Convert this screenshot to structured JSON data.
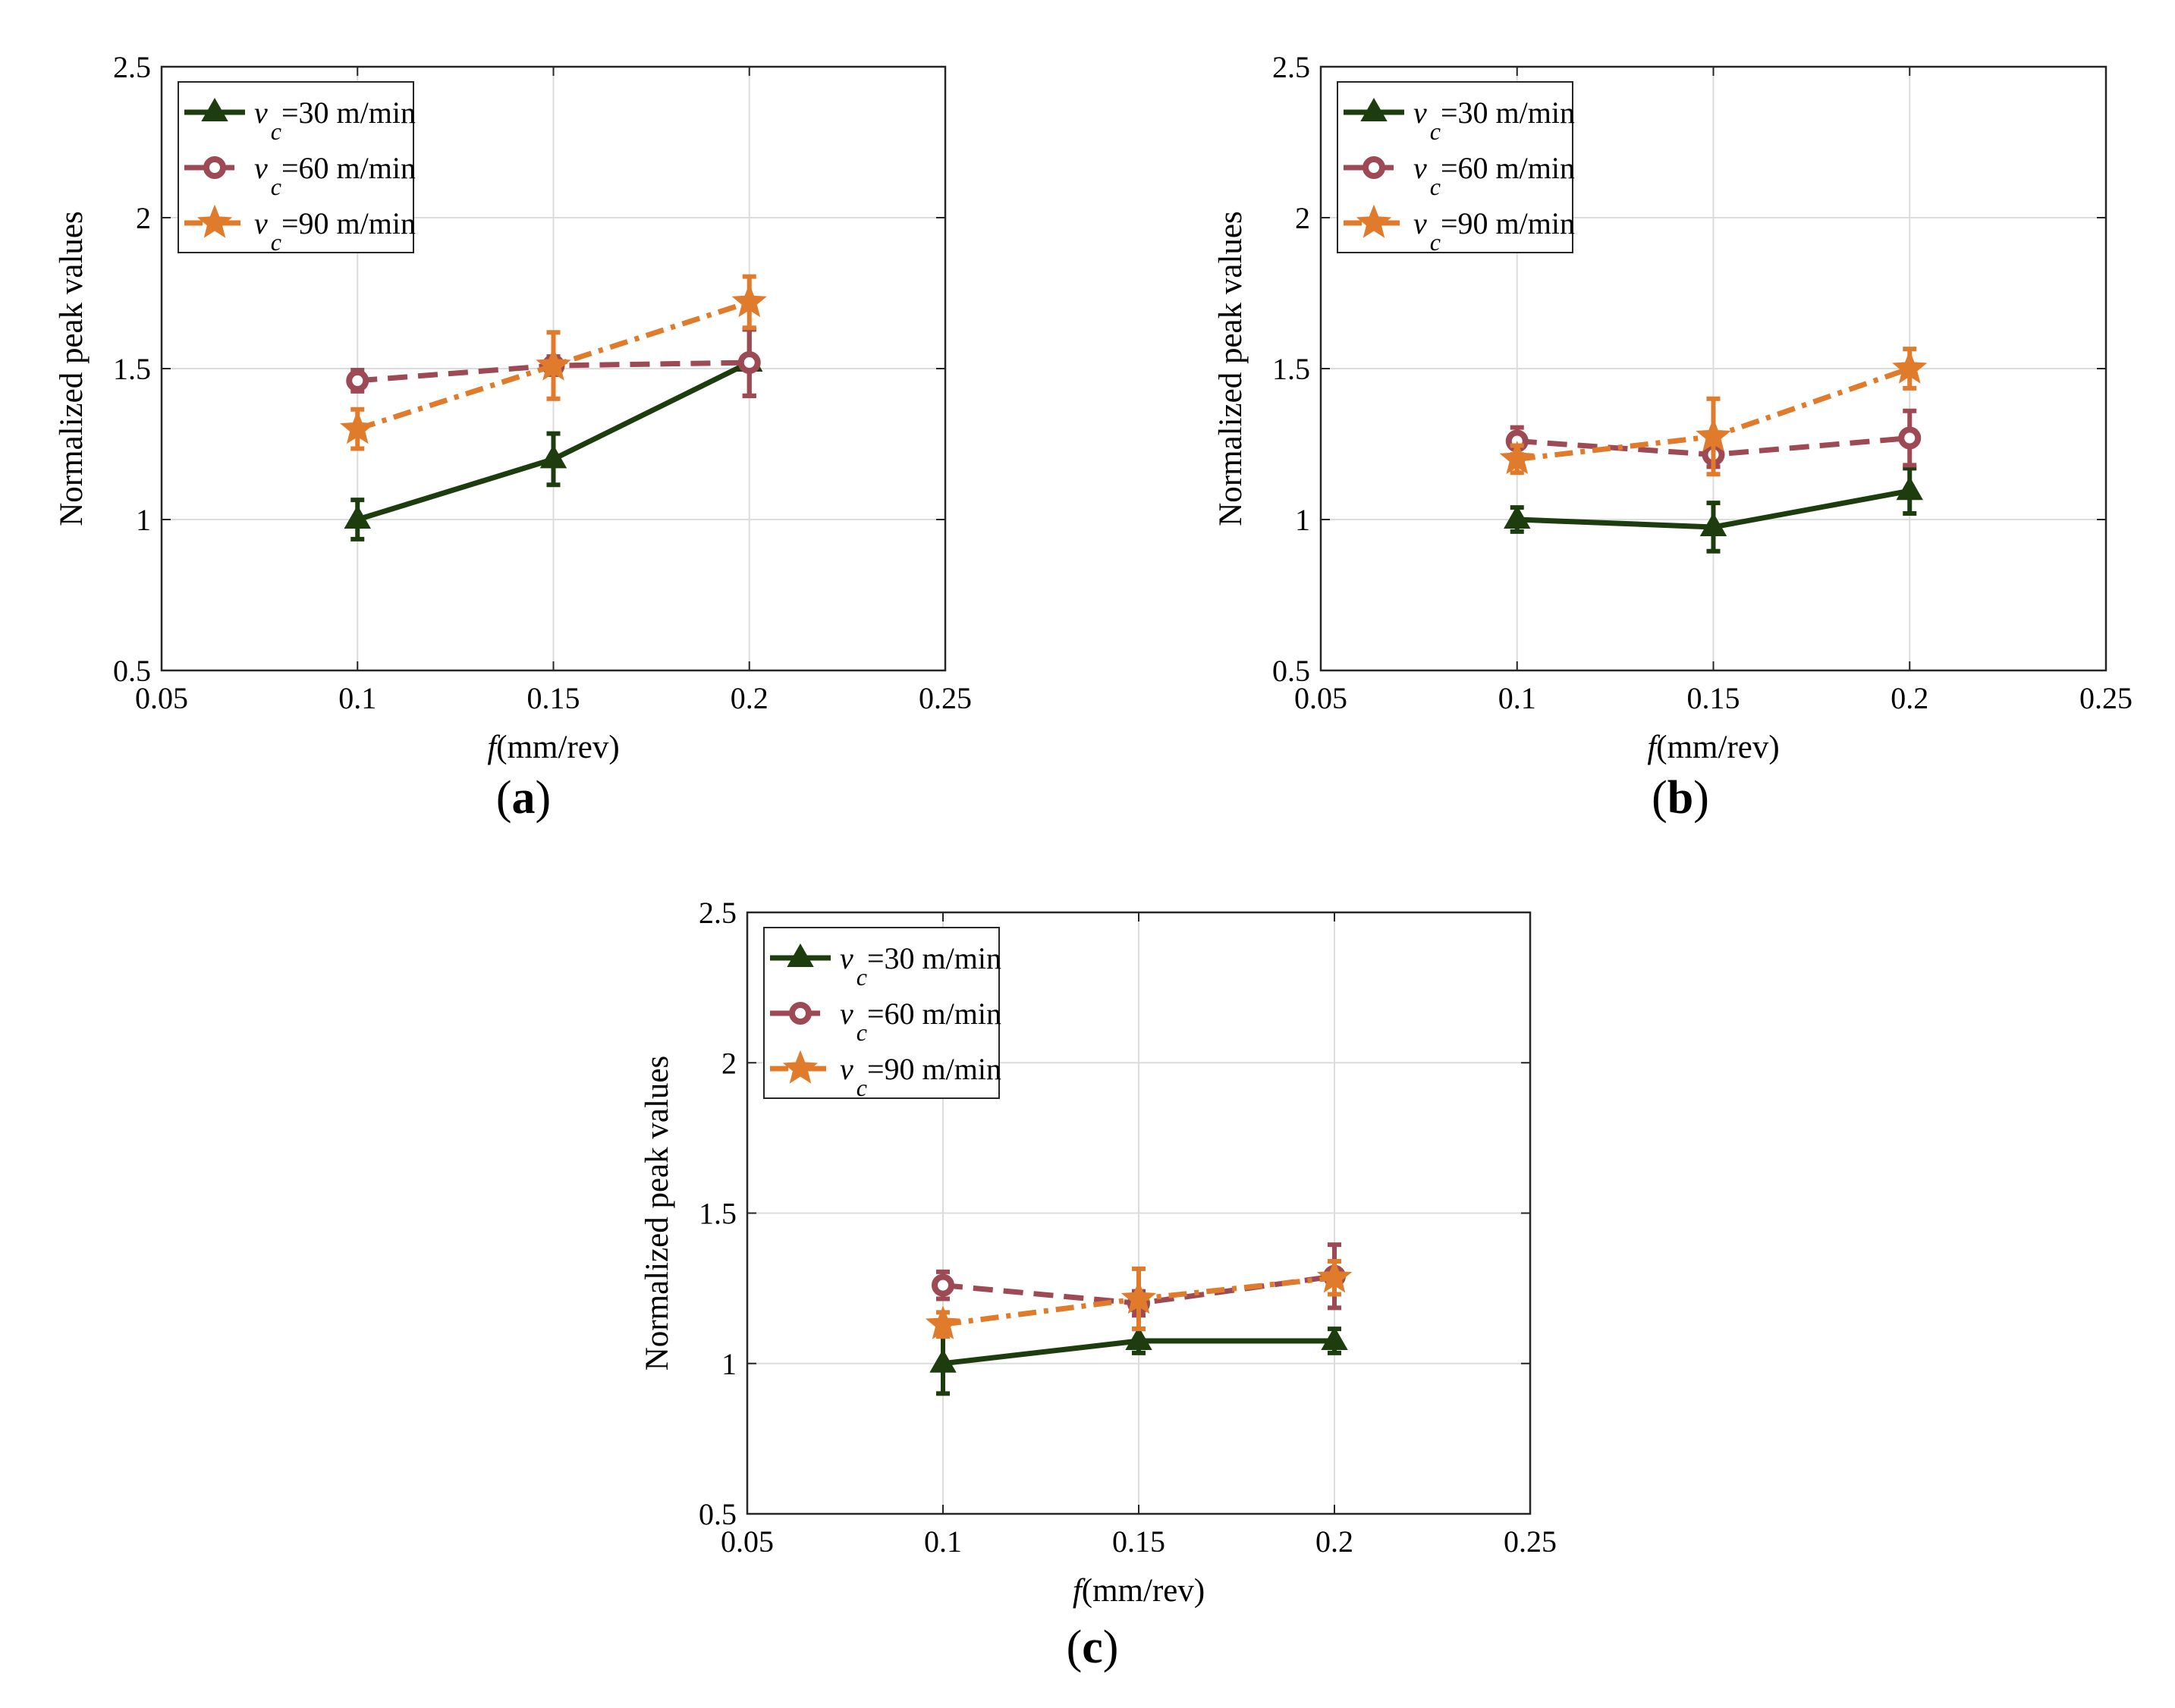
{
  "figure": {
    "panel_labels": [
      "a",
      "b",
      "c"
    ]
  },
  "chart_data": [
    {
      "type": "line",
      "panel": "a",
      "xlabel_italic": "f",
      "xlabel_rest": "(mm/rev)",
      "ylabel": "Normalized peak values",
      "xlim": [
        0.05,
        0.25
      ],
      "ylim": [
        0.5,
        2.5
      ],
      "xticks": [
        "0.05",
        "0.1",
        "0.15",
        "0.2",
        "0.25"
      ],
      "yticks": [
        "0.5",
        "1",
        "1.5",
        "2",
        "2.5"
      ],
      "grid": true,
      "legend_position": "top-left",
      "x": [
        0.1,
        0.15,
        0.2
      ],
      "series": [
        {
          "name_var": "v",
          "name_sub": "c",
          "name_rest": "=30 m/min",
          "marker": "triangle",
          "line": "solid",
          "color": "#1d3d0e",
          "values": [
            1.0,
            1.2,
            1.52
          ],
          "errors": [
            0.065,
            0.085,
            0.11
          ]
        },
        {
          "name_var": "v",
          "name_sub": "c",
          "name_rest": "=60 m/min",
          "marker": "circle",
          "line": "dashed",
          "color": "#9e4a55",
          "values": [
            1.46,
            1.51,
            1.52
          ],
          "errors": [
            0.035,
            0.03,
            0.11
          ]
        },
        {
          "name_var": "v",
          "name_sub": "c",
          "name_rest": "=90 m/min",
          "marker": "star",
          "line": "dashdot",
          "color": "#e07b2c",
          "values": [
            1.3,
            1.51,
            1.72
          ],
          "errors": [
            0.065,
            0.11,
            0.085
          ]
        }
      ]
    },
    {
      "type": "line",
      "panel": "b",
      "xlabel_italic": "f",
      "xlabel_rest": "(mm/rev)",
      "ylabel": "Normalized peak values",
      "xlim": [
        0.05,
        0.25
      ],
      "ylim": [
        0.5,
        2.5
      ],
      "xticks": [
        "0.05",
        "0.1",
        "0.15",
        "0.2",
        "0.25"
      ],
      "yticks": [
        "0.5",
        "1",
        "1.5",
        "2",
        "2.5"
      ],
      "grid": true,
      "legend_position": "top-left",
      "x": [
        0.1,
        0.15,
        0.2
      ],
      "series": [
        {
          "name_var": "v",
          "name_sub": "c",
          "name_rest": "=30 m/min",
          "marker": "triangle",
          "line": "solid",
          "color": "#1d3d0e",
          "values": [
            1.0,
            0.975,
            1.095
          ],
          "errors": [
            0.04,
            0.08,
            0.075
          ]
        },
        {
          "name_var": "v",
          "name_sub": "c",
          "name_rest": "=60 m/min",
          "marker": "circle",
          "line": "dashed",
          "color": "#9e4a55",
          "values": [
            1.26,
            1.215,
            1.27
          ],
          "errors": [
            0.045,
            0.04,
            0.09
          ]
        },
        {
          "name_var": "v",
          "name_sub": "c",
          "name_rest": "=90 m/min",
          "marker": "star",
          "line": "dashdot",
          "color": "#e07b2c",
          "values": [
            1.2,
            1.275,
            1.5
          ],
          "errors": [
            0.045,
            0.125,
            0.065
          ]
        }
      ]
    },
    {
      "type": "line",
      "panel": "c",
      "xlabel_italic": "f",
      "xlabel_rest": "(mm/rev)",
      "ylabel": "Normalized peak values",
      "xlim": [
        0.05,
        0.25
      ],
      "ylim": [
        0.5,
        2.5
      ],
      "xticks": [
        "0.05",
        "0.1",
        "0.15",
        "0.2",
        "0.25"
      ],
      "yticks": [
        "0.5",
        "1",
        "1.5",
        "2",
        "2.5"
      ],
      "grid": true,
      "legend_position": "top-left",
      "x": [
        0.1,
        0.15,
        0.2
      ],
      "series": [
        {
          "name_var": "v",
          "name_sub": "c",
          "name_rest": "=30 m/min",
          "marker": "triangle",
          "line": "solid",
          "color": "#1d3d0e",
          "values": [
            1.0,
            1.075,
            1.075
          ],
          "errors": [
            0.1,
            0.04,
            0.04
          ]
        },
        {
          "name_var": "v",
          "name_sub": "c",
          "name_rest": "=60 m/min",
          "marker": "circle",
          "line": "dashed",
          "color": "#9e4a55",
          "values": [
            1.26,
            1.2,
            1.29
          ],
          "errors": [
            0.045,
            0.04,
            0.105
          ]
        },
        {
          "name_var": "v",
          "name_sub": "c",
          "name_rest": "=90 m/min",
          "marker": "star",
          "line": "dashdot",
          "color": "#e07b2c",
          "values": [
            1.13,
            1.215,
            1.285
          ],
          "errors": [
            0.04,
            0.1,
            0.055
          ]
        }
      ]
    }
  ]
}
